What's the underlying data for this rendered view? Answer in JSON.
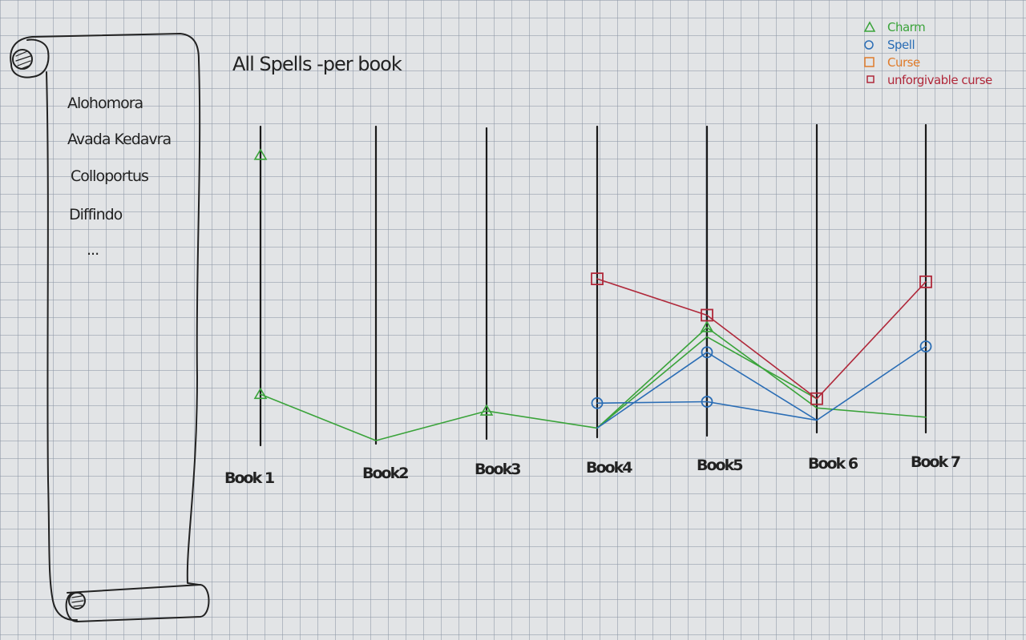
{
  "title": "All Spells -per book",
  "scroll": {
    "items": [
      "Alohomora",
      "Avada Kedavra",
      "Colloportus",
      "Diffindo",
      "..."
    ]
  },
  "legend": [
    {
      "label": "Charm",
      "color": "#3aa33a",
      "marker": "triangle"
    },
    {
      "label": "Spell",
      "color": "#2a6db5",
      "marker": "circle"
    },
    {
      "label": "Curse",
      "color": "#e07b2a",
      "marker": "square"
    },
    {
      "label": "unforgivable curse",
      "color": "#b0283a",
      "marker": "square-small"
    }
  ],
  "chart_data": {
    "type": "line",
    "categories": [
      "Book 1",
      "Book2",
      "Book3",
      "Book4",
      "Book5",
      "Book 6",
      "Book 7"
    ],
    "ylim": [
      0,
      1
    ],
    "series": [
      {
        "name": "Charm",
        "color": "#3aa33a",
        "marker": "triangle",
        "lines": [
          [
            [
              0,
              0.16
            ],
            [
              1,
              0.01
            ],
            [
              2,
              0.09
            ],
            [
              3,
              0.03
            ],
            [
              4,
              0.35
            ],
            [
              5,
              0.08
            ],
            [
              6,
              0.05
            ]
          ],
          [
            [
              3,
              0.03
            ],
            [
              4,
              0.32
            ],
            [
              5,
              0.11
            ]
          ]
        ],
        "markers": [
          [
            0,
            0.16
          ],
          [
            0,
            0.91
          ],
          [
            2,
            0.09
          ],
          [
            4,
            0.35
          ]
        ]
      },
      {
        "name": "Spell",
        "color": "#2a6db5",
        "marker": "circle",
        "lines": [
          [
            [
              3,
              0.11
            ],
            [
              4,
              0.11
            ],
            [
              5,
              0.04
            ]
          ],
          [
            [
              3,
              0.03
            ],
            [
              4,
              0.27
            ],
            [
              5,
              0.04
            ],
            [
              6,
              0.28
            ]
          ]
        ],
        "markers": [
          [
            3,
            0.11
          ],
          [
            4,
            0.11
          ],
          [
            4,
            0.27
          ],
          [
            6,
            0.28
          ]
        ]
      },
      {
        "name": "unforgivable curse",
        "color": "#b0283a",
        "marker": "square",
        "lines": [
          [
            [
              3,
              0.51
            ],
            [
              4,
              0.39
            ],
            [
              5,
              0.11
            ],
            [
              6,
              0.49
            ]
          ]
        ],
        "markers": [
          [
            3,
            0.51
          ],
          [
            4,
            0.39
          ],
          [
            5,
            0.11
          ],
          [
            6,
            0.49
          ]
        ]
      }
    ]
  }
}
